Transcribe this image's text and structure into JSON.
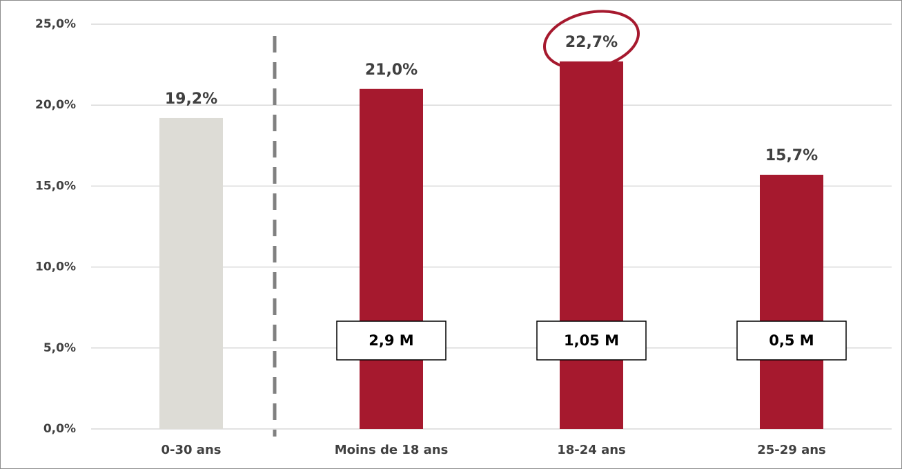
{
  "chart_data": {
    "type": "bar",
    "categories": [
      "0-30 ans",
      "Moins de 18 ans",
      "18-24 ans",
      "25-29 ans"
    ],
    "values": [
      19.2,
      21.0,
      22.7,
      15.7
    ],
    "value_labels": [
      "19,2%",
      "21,0%",
      "22,7%",
      "15,7%"
    ],
    "colors": [
      "#dddcd6",
      "#a6192e",
      "#a6192e",
      "#a6192e"
    ],
    "bar_annotations": [
      null,
      "2,9 M",
      "1,05 M",
      "0,5 M"
    ],
    "ylim": [
      0,
      25
    ],
    "yticks": [
      {
        "value": 0,
        "label": "0,0%"
      },
      {
        "value": 5,
        "label": "5,0%"
      },
      {
        "value": 10,
        "label": "10,0%"
      },
      {
        "value": 15,
        "label": "15,0%"
      },
      {
        "value": 20,
        "label": "20,0%"
      },
      {
        "value": 25,
        "label": "25,0%"
      }
    ],
    "grid": true
  }
}
